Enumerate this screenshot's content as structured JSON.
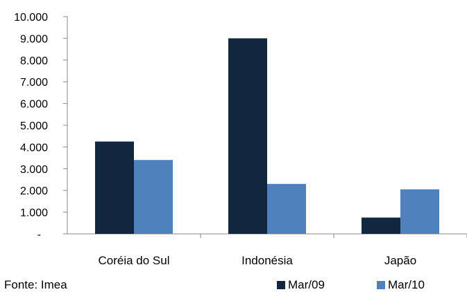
{
  "chart_data": {
    "type": "bar",
    "categories": [
      "Coréia do Sul",
      "Indonésia",
      "Japão"
    ],
    "series": [
      {
        "name": "Mar/09",
        "color": "#12263f",
        "values": [
          4250,
          9000,
          750
        ]
      },
      {
        "name": "Mar/10",
        "color": "#4f81bd",
        "values": [
          3400,
          2300,
          2050
        ]
      }
    ],
    "ylim": [
      0,
      10000
    ],
    "yticks": [
      0,
      1000,
      2000,
      3000,
      4000,
      5000,
      6000,
      7000,
      8000,
      9000,
      10000
    ],
    "ytick_labels": [
      "-",
      "1.000",
      "2.000",
      "3.000",
      "4.000",
      "5.000",
      "6.000",
      "7.000",
      "8.000",
      "9.000",
      "10.000"
    ],
    "grid": false,
    "legend_position": "bottom-right",
    "title": "",
    "xlabel": "",
    "ylabel": ""
  },
  "source_note": "Fonte: Imea"
}
